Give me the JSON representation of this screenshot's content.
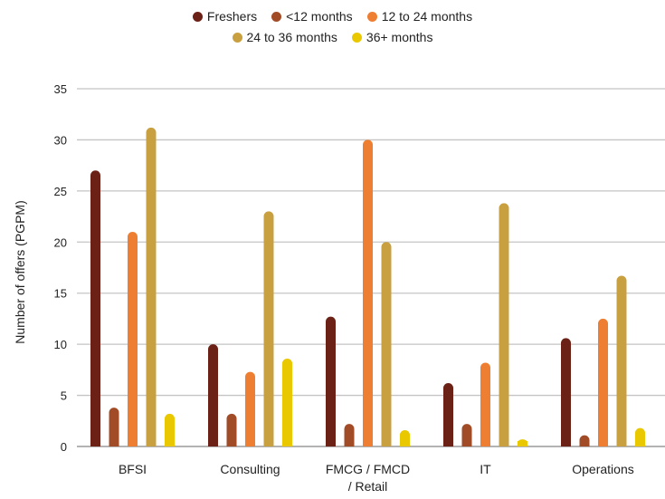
{
  "chart_data": {
    "type": "bar",
    "title": "",
    "xlabel": "",
    "ylabel": "Number of offers (PGPM)",
    "ylim": [
      0,
      35
    ],
    "yticks": [
      0,
      5,
      10,
      15,
      20,
      25,
      30,
      35
    ],
    "grid": true,
    "legend_position": "top-center",
    "categories": [
      [
        "BFSI"
      ],
      [
        "Consulting"
      ],
      [
        "FMCG / FMCD",
        "/ Retail"
      ],
      [
        "IT"
      ],
      [
        "Operations"
      ]
    ],
    "series": [
      {
        "name": "Freshers",
        "color": "#6b2116",
        "values": [
          27,
          10,
          12.7,
          6.2,
          10.6
        ]
      },
      {
        "name": "<12 months",
        "color": "#a24b27",
        "values": [
          3.8,
          3.2,
          2.2,
          2.2,
          1.1
        ]
      },
      {
        "name": "12 to 24 months",
        "color": "#ee7f32",
        "values": [
          21,
          7.3,
          30,
          8.2,
          12.5
        ]
      },
      {
        "name": "24 to 36 months",
        "color": "#c9a040",
        "values": [
          31.2,
          23,
          20,
          23.8,
          16.7
        ]
      },
      {
        "name": "36+ months",
        "color": "#e9c800",
        "values": [
          3.2,
          8.6,
          1.6,
          0.7,
          1.8
        ]
      }
    ]
  }
}
